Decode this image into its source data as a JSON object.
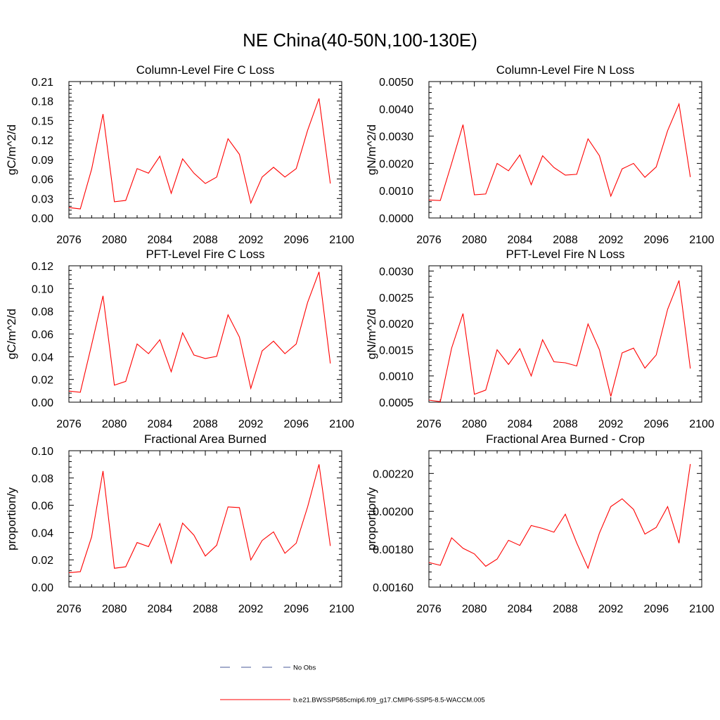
{
  "figure": {
    "title": "NE China(40-50N,100-130E)",
    "legend": [
      {
        "label": "No Obs",
        "color": "#4a5a9a",
        "style": "dashed"
      },
      {
        "label": "b.e21.BWSSP585cmip6.f09_g17.CMIP6-SSP5-8.5-WACCM.005",
        "color": "#ff0000",
        "style": "solid"
      }
    ]
  },
  "chart_data": [
    {
      "type": "line",
      "title": "Column-Level Fire C Loss",
      "ylabel": "gC/m^2/d",
      "xlim": [
        2076,
        2100
      ],
      "ylim": [
        0,
        0.21
      ],
      "xticks": [
        2076,
        2080,
        2084,
        2088,
        2092,
        2096,
        2100
      ],
      "xtick_labels": [
        "2076",
        "2080",
        "2084",
        "2088",
        "2092",
        "2096",
        "2100"
      ],
      "yticks": [
        0,
        0.03,
        0.06,
        0.09,
        0.12,
        0.15,
        0.18,
        0.21
      ],
      "ytick_labels": [
        "0.00",
        "0.03",
        "0.06",
        "0.09",
        "0.12",
        "0.15",
        "0.18",
        "0.21"
      ],
      "x": [
        2076,
        2077,
        2078,
        2079,
        2080,
        2081,
        2082,
        2083,
        2084,
        2085,
        2086,
        2087,
        2088,
        2089,
        2090,
        2091,
        2092,
        2093,
        2094,
        2095,
        2096,
        2097,
        2098,
        2099
      ],
      "series": [
        {
          "color": "#ff0000",
          "values": [
            0.016,
            0.014,
            0.075,
            0.16,
            0.025,
            0.027,
            0.076,
            0.069,
            0.095,
            0.038,
            0.091,
            0.069,
            0.053,
            0.063,
            0.122,
            0.098,
            0.023,
            0.063,
            0.078,
            0.063,
            0.076,
            0.135,
            0.184,
            0.053
          ]
        }
      ]
    },
    {
      "type": "line",
      "title": "Column-Level Fire N Loss",
      "ylabel": "gN/m^2/d",
      "xlim": [
        2076,
        2100
      ],
      "ylim": [
        0,
        0.005
      ],
      "xticks": [
        2076,
        2080,
        2084,
        2088,
        2092,
        2096,
        2100
      ],
      "xtick_labels": [
        "2076",
        "2080",
        "2084",
        "2088",
        "2092",
        "2096",
        "2100"
      ],
      "yticks": [
        0,
        0.001,
        0.002,
        0.003,
        0.004,
        0.005
      ],
      "ytick_labels": [
        "0.0000",
        "0.0010",
        "0.0020",
        "0.0030",
        "0.0040",
        "0.0050"
      ],
      "x": [
        2076,
        2077,
        2078,
        2079,
        2080,
        2081,
        2082,
        2083,
        2084,
        2085,
        2086,
        2087,
        2088,
        2089,
        2090,
        2091,
        2092,
        2093,
        2094,
        2095,
        2096,
        2097,
        2098,
        2099
      ],
      "series": [
        {
          "color": "#ff0000",
          "values": [
            0.00066,
            0.00064,
            0.002,
            0.00342,
            0.00085,
            0.00088,
            0.002,
            0.00173,
            0.00231,
            0.00122,
            0.00228,
            0.00185,
            0.00157,
            0.0016,
            0.0029,
            0.00228,
            0.0008,
            0.0018,
            0.002,
            0.00149,
            0.00187,
            0.0032,
            0.00418,
            0.0015
          ]
        }
      ]
    },
    {
      "type": "line",
      "title": "PFT-Level Fire C Loss",
      "ylabel": "gC/m^2/d",
      "xlim": [
        2076,
        2100
      ],
      "ylim": [
        0,
        0.12
      ],
      "xticks": [
        2076,
        2080,
        2084,
        2088,
        2092,
        2096,
        2100
      ],
      "xtick_labels": [
        "2076",
        "2080",
        "2084",
        "2088",
        "2092",
        "2096",
        "2100"
      ],
      "yticks": [
        0,
        0.02,
        0.04,
        0.06,
        0.08,
        0.1,
        0.12
      ],
      "ytick_labels": [
        "0.00",
        "0.02",
        "0.04",
        "0.06",
        "0.08",
        "0.10",
        "0.12"
      ],
      "x": [
        2076,
        2077,
        2078,
        2079,
        2080,
        2081,
        2082,
        2083,
        2084,
        2085,
        2086,
        2087,
        2088,
        2089,
        2090,
        2091,
        2092,
        2093,
        2094,
        2095,
        2096,
        2097,
        2098,
        2099
      ],
      "series": [
        {
          "color": "#ff0000",
          "values": [
            0.0098,
            0.0087,
            0.0505,
            0.0935,
            0.015,
            0.0183,
            0.0512,
            0.0427,
            0.0549,
            0.0268,
            0.061,
            0.0415,
            0.0384,
            0.0403,
            0.0768,
            0.0573,
            0.0122,
            0.0451,
            0.0537,
            0.0427,
            0.0512,
            0.0878,
            0.1146,
            0.0341
          ]
        }
      ]
    },
    {
      "type": "line",
      "title": "PFT-Level Fire N Loss",
      "ylabel": "gN/m^2/d",
      "xlim": [
        2076,
        2100
      ],
      "ylim": [
        0.0005,
        0.0031
      ],
      "xticks": [
        2076,
        2080,
        2084,
        2088,
        2092,
        2096,
        2100
      ],
      "xtick_labels": [
        "2076",
        "2080",
        "2084",
        "2088",
        "2092",
        "2096",
        "2100"
      ],
      "yticks": [
        0.0005,
        0.001,
        0.0015,
        0.002,
        0.0025,
        0.003
      ],
      "ytick_labels": [
        "0.0005",
        "0.0010",
        "0.0015",
        "0.0020",
        "0.0025",
        "0.0030"
      ],
      "x": [
        2076,
        2077,
        2078,
        2079,
        2080,
        2081,
        2082,
        2083,
        2084,
        2085,
        2086,
        2087,
        2088,
        2089,
        2090,
        2091,
        2092,
        2093,
        2094,
        2095,
        2096,
        2097,
        2098,
        2099
      ],
      "series": [
        {
          "color": "#ff0000",
          "values": [
            0.00054,
            0.00051,
            0.00153,
            0.00219,
            0.00065,
            0.00073,
            0.0015,
            0.00122,
            0.00152,
            0.001,
            0.00169,
            0.00127,
            0.00125,
            0.00119,
            0.00199,
            0.0015,
            0.00061,
            0.00144,
            0.00153,
            0.00115,
            0.0014,
            0.00227,
            0.00282,
            0.00114
          ]
        }
      ]
    },
    {
      "type": "line",
      "title": "Fractional Area Burned",
      "ylabel": "proportion/y",
      "xlim": [
        2076,
        2100
      ],
      "ylim": [
        0,
        0.1
      ],
      "xticks": [
        2076,
        2080,
        2084,
        2088,
        2092,
        2096,
        2100
      ],
      "xtick_labels": [
        "2076",
        "2080",
        "2084",
        "2088",
        "2092",
        "2096",
        "2100"
      ],
      "yticks": [
        0,
        0.02,
        0.04,
        0.06,
        0.08,
        0.1
      ],
      "ytick_labels": [
        "0.00",
        "0.02",
        "0.04",
        "0.06",
        "0.08",
        "0.10"
      ],
      "x": [
        2076,
        2077,
        2078,
        2079,
        2080,
        2081,
        2082,
        2083,
        2084,
        2085,
        2086,
        2087,
        2088,
        2089,
        2090,
        2091,
        2092,
        2093,
        2094,
        2095,
        2096,
        2097,
        2098,
        2099
      ],
      "series": [
        {
          "color": "#ff0000",
          "values": [
            0.0105,
            0.0113,
            0.0368,
            0.0851,
            0.0138,
            0.0149,
            0.0327,
            0.0297,
            0.0466,
            0.0176,
            0.0469,
            0.0381,
            0.0228,
            0.0307,
            0.0588,
            0.0583,
            0.0199,
            0.0342,
            0.0405,
            0.0248,
            0.0322,
            0.0588,
            0.09,
            0.0302
          ]
        }
      ]
    },
    {
      "type": "line",
      "title": "Fractional Area Burned - Crop",
      "ylabel": "proportion/y",
      "xlim": [
        2076,
        2100
      ],
      "ylim": [
        0.0016,
        0.00232
      ],
      "xticks": [
        2076,
        2080,
        2084,
        2088,
        2092,
        2096,
        2100
      ],
      "xtick_labels": [
        "2076",
        "2080",
        "2084",
        "2088",
        "2092",
        "2096",
        "2100"
      ],
      "yticks": [
        0.0016,
        0.0018,
        0.002,
        0.0022
      ],
      "ytick_labels": [
        "0.00160",
        "0.00180",
        "0.00200",
        "0.00220"
      ],
      "x": [
        2076,
        2077,
        2078,
        2079,
        2080,
        2081,
        2082,
        2083,
        2084,
        2085,
        2086,
        2087,
        2088,
        2089,
        2090,
        2091,
        2092,
        2093,
        2094,
        2095,
        2096,
        2097,
        2098,
        2099
      ],
      "series": [
        {
          "color": "#ff0000",
          "values": [
            0.00173,
            0.001715,
            0.00186,
            0.001805,
            0.001775,
            0.00171,
            0.001748,
            0.001847,
            0.00182,
            0.001925,
            0.00191,
            0.00189,
            0.001985,
            0.001833,
            0.0017,
            0.001885,
            0.002025,
            0.002066,
            0.00201,
            0.00188,
            0.001915,
            0.002025,
            0.001832,
            0.00225
          ]
        }
      ]
    }
  ]
}
